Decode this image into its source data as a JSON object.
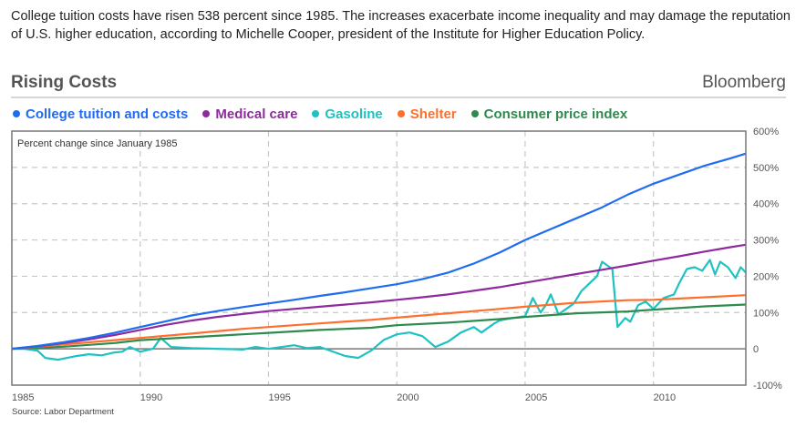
{
  "description": "College tuition costs have risen 538 percent since 1985. The increases exacerbate income inequality and may damage the reputation of U.S. higher education, according to Michelle Cooper, president of the Institute for Higher Education Policy.",
  "header": {
    "title": "Rising Costs",
    "brand": "Bloomberg"
  },
  "source": "Source: Labor Department",
  "chart_data": {
    "type": "line",
    "title": "Rising Costs",
    "annotation": "Percent change since January 1985",
    "xlabel": "",
    "ylabel": "Percent change since January 1985",
    "xlim": [
      1985,
      2013.6
    ],
    "ylim": [
      -100,
      600
    ],
    "x_ticks": [
      1985,
      1990,
      1995,
      2000,
      2005,
      2010
    ],
    "x_tick_labels": [
      "1985",
      "1990",
      "1995",
      "2000",
      "2005",
      "2010"
    ],
    "y_ticks": [
      600,
      500,
      400,
      300,
      200,
      100,
      0,
      -100
    ],
    "y_tick_labels": [
      "600%",
      "500%",
      "400%",
      "300%",
      "200%",
      "100%",
      "0",
      "-100%"
    ],
    "y_axis_position": "right",
    "grid": true,
    "legend_position": "top",
    "series": [
      {
        "name": "College tuition and costs",
        "color": "#1f6cf2",
        "x": [
          1985,
          1986,
          1987,
          1988,
          1989,
          1990,
          1991,
          1992,
          1993,
          1994,
          1995,
          1996,
          1997,
          1998,
          1999,
          2000,
          2001,
          2002,
          2003,
          2004,
          2005,
          2006,
          2007,
          2008,
          2009,
          2010,
          2011,
          2012,
          2013,
          2013.6
        ],
        "values": [
          0,
          8,
          18,
          30,
          44,
          60,
          76,
          92,
          104,
          115,
          125,
          135,
          146,
          156,
          167,
          178,
          192,
          210,
          235,
          265,
          300,
          330,
          360,
          390,
          425,
          455,
          480,
          505,
          525,
          538
        ]
      },
      {
        "name": "Medical care",
        "color": "#8e2a9e",
        "x": [
          1985,
          1986,
          1987,
          1988,
          1989,
          1990,
          1991,
          1992,
          1993,
          1994,
          1995,
          1996,
          1997,
          1998,
          1999,
          2000,
          2001,
          2002,
          2003,
          2004,
          2005,
          2006,
          2007,
          2008,
          2009,
          2010,
          2011,
          2012,
          2013,
          2013.6
        ],
        "values": [
          0,
          7,
          16,
          26,
          38,
          52,
          66,
          78,
          88,
          96,
          104,
          110,
          116,
          122,
          128,
          135,
          142,
          150,
          160,
          170,
          182,
          194,
          206,
          218,
          230,
          243,
          255,
          268,
          280,
          287
        ]
      },
      {
        "name": "Gasoline",
        "color": "#1ec2c2",
        "x": [
          1985,
          1985.5,
          1986,
          1986.3,
          1986.8,
          1987.5,
          1988,
          1988.5,
          1989,
          1989.3,
          1989.6,
          1990,
          1990.5,
          1990.8,
          1991.2,
          1992,
          1993,
          1994,
          1994.5,
          1995,
          1996,
          1996.5,
          1997,
          1998,
          1998.5,
          1999,
          1999.5,
          2000,
          2000.5,
          2001,
          2001.5,
          2002,
          2002.5,
          2003,
          2003.3,
          2003.8,
          2004,
          2004.5,
          2005,
          2005.3,
          2005.6,
          2005.8,
          2006,
          2006.3,
          2006.6,
          2006.9,
          2007.2,
          2007.5,
          2007.8,
          2008,
          2008.4,
          2008.6,
          2008.9,
          2009.1,
          2009.4,
          2009.7,
          2010,
          2010.4,
          2010.8,
          2011,
          2011.3,
          2011.6,
          2011.9,
          2012.2,
          2012.4,
          2012.6,
          2012.9,
          2013.2,
          2013.4,
          2013.6
        ],
        "values": [
          0,
          0,
          -5,
          -25,
          -30,
          -20,
          -15,
          -18,
          -10,
          -8,
          5,
          -8,
          0,
          30,
          5,
          2,
          0,
          -2,
          5,
          0,
          10,
          2,
          5,
          -20,
          -25,
          -5,
          25,
          40,
          45,
          35,
          5,
          20,
          45,
          60,
          45,
          70,
          78,
          85,
          90,
          140,
          100,
          120,
          150,
          95,
          110,
          125,
          160,
          180,
          200,
          240,
          220,
          60,
          85,
          75,
          120,
          130,
          110,
          140,
          150,
          180,
          220,
          225,
          215,
          245,
          205,
          240,
          225,
          195,
          225,
          210
        ]
      },
      {
        "name": "Shelter",
        "color": "#ff6f2c",
        "x": [
          1985,
          1987,
          1989,
          1990,
          1992,
          1994,
          1995,
          1997,
          1999,
          2000,
          2002,
          2004,
          2005,
          2007,
          2009,
          2010,
          2012,
          2013.6
        ],
        "values": [
          0,
          12,
          24,
          30,
          42,
          55,
          60,
          70,
          80,
          86,
          98,
          110,
          116,
          127,
          134,
          135,
          142,
          148
        ]
      },
      {
        "name": "Consumer price index",
        "color": "#2e8b4e",
        "x": [
          1985,
          1987,
          1989,
          1990,
          1992,
          1994,
          1995,
          1997,
          1999,
          2000,
          2002,
          2004,
          2005,
          2007,
          2009,
          2010,
          2012,
          2013.6
        ],
        "values": [
          0,
          6,
          16,
          24,
          32,
          40,
          44,
          52,
          58,
          65,
          72,
          82,
          88,
          98,
          103,
          108,
          117,
          122
        ]
      }
    ]
  }
}
